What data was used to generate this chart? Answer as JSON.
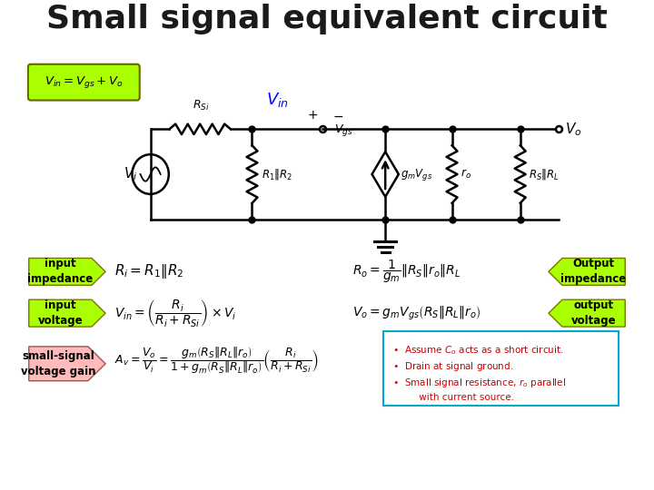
{
  "title": "Small signal equivalent circuit",
  "title_color": "#1a1a1a",
  "title_fontsize": 26,
  "bg_color": "#ffffff",
  "circuit_color": "#000000",
  "blue_color": "#0000ff",
  "red_color": "#cc0000",
  "cyan_border": "#00aacc",
  "green_label": "#aaff00",
  "pink_label": "#ffbbbb",
  "bullet_text": [
    "Assume $C_o$ acts as a short circuit.",
    "Drain at signal ground.",
    "Small signal resistance, $r_o$ parallel with current source."
  ]
}
